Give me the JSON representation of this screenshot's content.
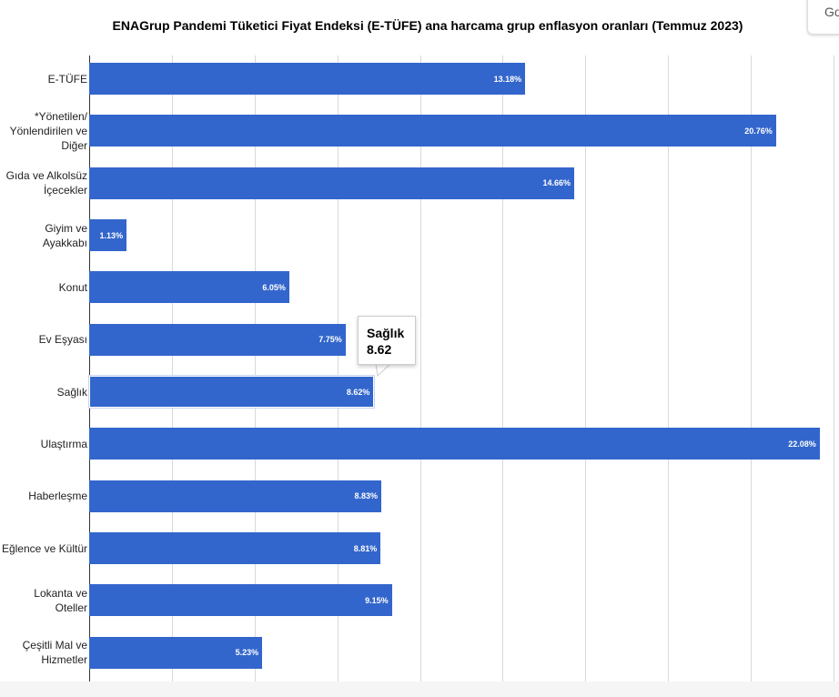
{
  "chart_data": {
    "type": "bar",
    "orientation": "horizontal",
    "title": "ENAGrup Pandemi Tüketici Fiyat Endeksi (E-TÜFE) ana harcama grup enflasyon oranları (Temmuz 2023)",
    "categories": [
      "E-TÜFE",
      "*Yönetilen/ Yönlendirilen ve Diğer",
      "Gıda ve Alkolsüz İçecekler",
      "Giyim ve Ayakkabı",
      "Konut",
      "Ev Eşyası",
      "Sağlık",
      "Ulaştırma",
      "Haberleşme",
      "Eğlence ve Kültür",
      "Lokanta ve Oteller",
      "Çeşitli Mal ve Hizmetler"
    ],
    "values": [
      13.18,
      20.76,
      14.66,
      1.13,
      6.05,
      7.75,
      8.62,
      22.08,
      8.83,
      8.81,
      9.15,
      5.23
    ],
    "data_labels": [
      "13.18%",
      "20.76%",
      "14.66%",
      "1.13%",
      "6.05%",
      "7.75%",
      "8.62%",
      "22.08%",
      "8.83%",
      "8.81%",
      "9.15%",
      "5.23%"
    ],
    "xlim": [
      0,
      22.5
    ],
    "grid": true,
    "color": "#3366cc",
    "highlighted_category": "Sağlık",
    "tooltip": {
      "label": "Sağlık",
      "value": "8.62"
    }
  },
  "corner_button": {
    "label": "Go"
  }
}
